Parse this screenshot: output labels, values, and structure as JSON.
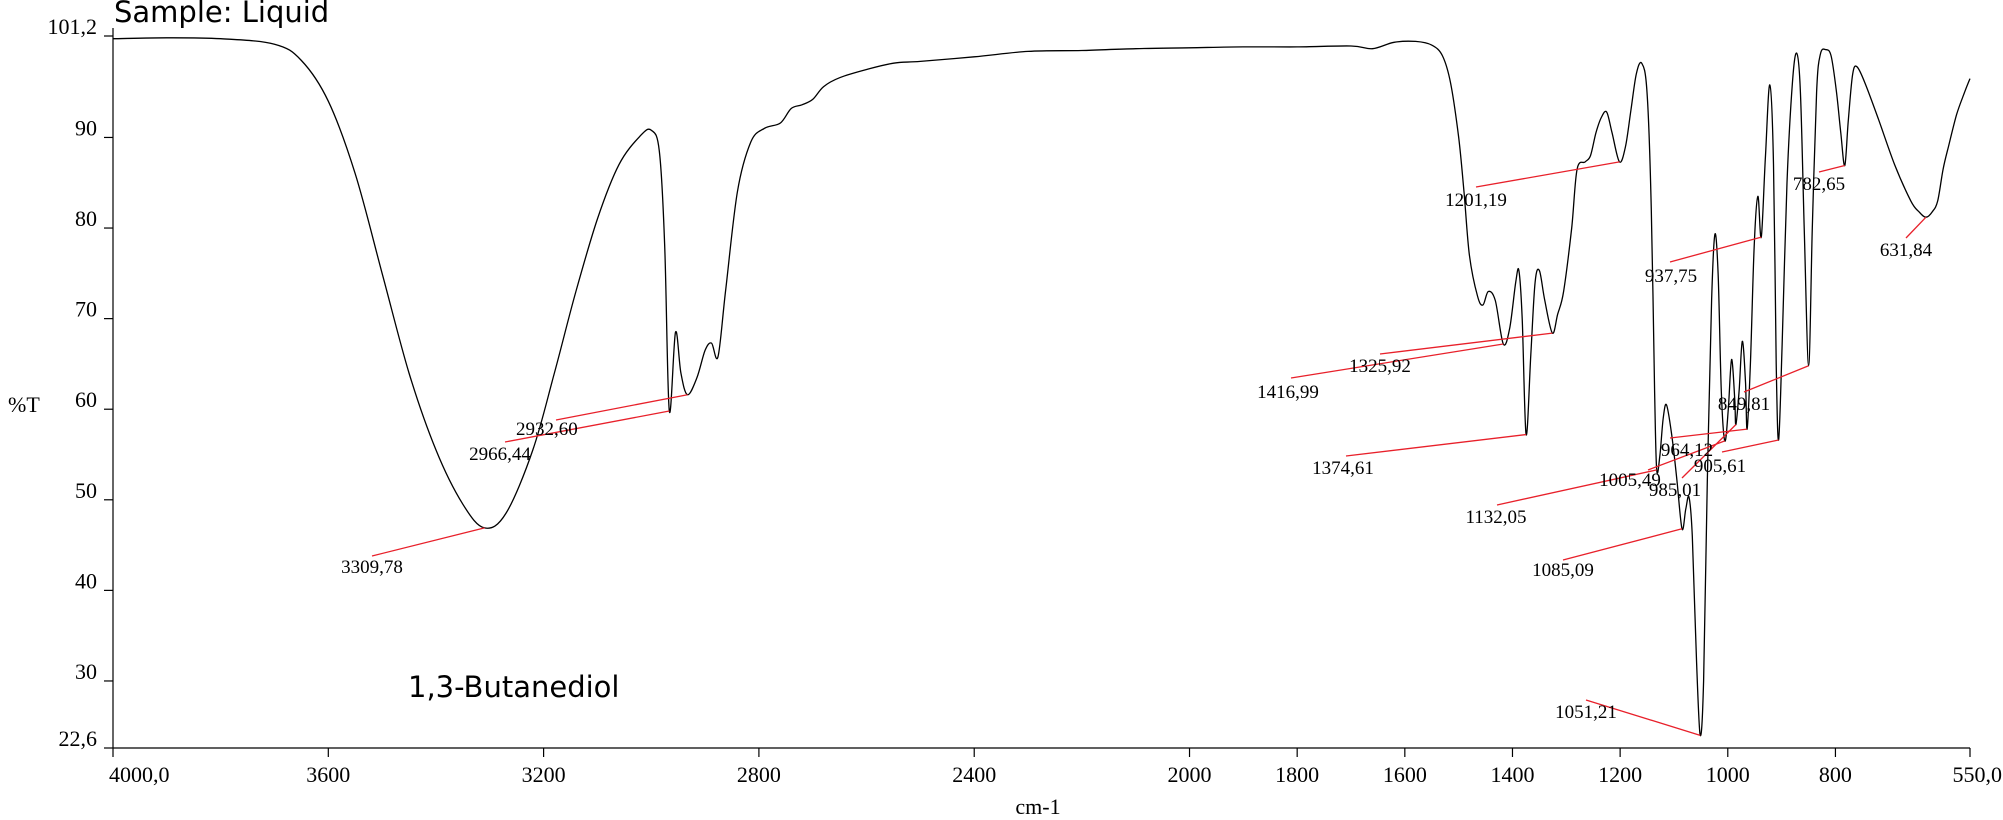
{
  "chart_data": {
    "type": "line",
    "title": "",
    "sample_label": "Sample: Liquid",
    "compound_label": "1,3-Butanediol",
    "xlabel": "cm-1",
    "ylabel": "%T",
    "xlim": [
      4000.0,
      550.0
    ],
    "ylim": [
      22.6,
      101.2
    ],
    "x_reversed": true,
    "grid": false,
    "x_ticks": [
      {
        "value": 4000,
        "label": "4000,0"
      },
      {
        "value": 3600,
        "label": "3600"
      },
      {
        "value": 3200,
        "label": "3200"
      },
      {
        "value": 2800,
        "label": "2800"
      },
      {
        "value": 2400,
        "label": "2400"
      },
      {
        "value": 2000,
        "label": "2000"
      },
      {
        "value": 1800,
        "label": "1800"
      },
      {
        "value": 1600,
        "label": "1600"
      },
      {
        "value": 1400,
        "label": "1400"
      },
      {
        "value": 1200,
        "label": "1200"
      },
      {
        "value": 1000,
        "label": "1000"
      },
      {
        "value": 800,
        "label": "800"
      },
      {
        "value": 550,
        "label": "550,0"
      }
    ],
    "y_ticks": [
      {
        "value": 101.2,
        "label": "101,2"
      },
      {
        "value": 90,
        "label": "90"
      },
      {
        "value": 80,
        "label": "80"
      },
      {
        "value": 70,
        "label": "70"
      },
      {
        "value": 60,
        "label": "60"
      },
      {
        "value": 50,
        "label": "50"
      },
      {
        "value": 40,
        "label": "40"
      },
      {
        "value": 30,
        "label": "30"
      },
      {
        "value": 22.6,
        "label": "22,6"
      }
    ],
    "spectrum": [
      [
        4000,
        100.9
      ],
      [
        3900,
        101.0
      ],
      [
        3800,
        100.9
      ],
      [
        3700,
        100.3
      ],
      [
        3650,
        98.5
      ],
      [
        3600,
        94.0
      ],
      [
        3550,
        86.0
      ],
      [
        3500,
        75.0
      ],
      [
        3450,
        64.0
      ],
      [
        3400,
        55.5
      ],
      [
        3350,
        49.5
      ],
      [
        3309.78,
        46.9
      ],
      [
        3270,
        48.5
      ],
      [
        3220,
        55.5
      ],
      [
        3180,
        64.0
      ],
      [
        3140,
        73.0
      ],
      [
        3100,
        81.0
      ],
      [
        3060,
        87.0
      ],
      [
        3020,
        90.2
      ],
      [
        3000,
        90.8
      ],
      [
        2985,
        88.5
      ],
      [
        2975,
        78.0
      ],
      [
        2966.44,
        59.8
      ],
      [
        2955,
        68.5
      ],
      [
        2945,
        64.0
      ],
      [
        2932.6,
        61.6
      ],
      [
        2915,
        63.5
      ],
      [
        2900,
        66.5
      ],
      [
        2888,
        67.3
      ],
      [
        2876,
        65.8
      ],
      [
        2862,
        73.0
      ],
      [
        2840,
        84.0
      ],
      [
        2815,
        89.5
      ],
      [
        2790,
        91.0
      ],
      [
        2760,
        91.6
      ],
      [
        2740,
        93.2
      ],
      [
        2720,
        93.6
      ],
      [
        2700,
        94.2
      ],
      [
        2680,
        95.6
      ],
      [
        2650,
        96.6
      ],
      [
        2600,
        97.5
      ],
      [
        2550,
        98.2
      ],
      [
        2500,
        98.4
      ],
      [
        2400,
        98.9
      ],
      [
        2300,
        99.5
      ],
      [
        2200,
        99.6
      ],
      [
        2100,
        99.8
      ],
      [
        2000,
        99.9
      ],
      [
        1900,
        100.0
      ],
      [
        1800,
        100.0
      ],
      [
        1700,
        100.1
      ],
      [
        1660,
        99.8
      ],
      [
        1620,
        100.5
      ],
      [
        1580,
        100.6
      ],
      [
        1550,
        100.2
      ],
      [
        1530,
        99.0
      ],
      [
        1515,
        96.0
      ],
      [
        1500,
        90.0
      ],
      [
        1490,
        84.0
      ],
      [
        1480,
        77.0
      ],
      [
        1465,
        72.5
      ],
      [
        1455,
        71.5
      ],
      [
        1445,
        73.0
      ],
      [
        1432,
        72.0
      ],
      [
        1416.99,
        67.2
      ],
      [
        1405,
        69.0
      ],
      [
        1394,
        74.0
      ],
      [
        1388,
        75.3
      ],
      [
        1382,
        70.0
      ],
      [
        1374.61,
        57.2
      ],
      [
        1366,
        66.0
      ],
      [
        1358,
        74.0
      ],
      [
        1350,
        75.3
      ],
      [
        1340,
        72.0
      ],
      [
        1325.92,
        68.4
      ],
      [
        1316,
        70.5
      ],
      [
        1305,
        73.0
      ],
      [
        1290,
        80.0
      ],
      [
        1280,
        86.5
      ],
      [
        1265,
        87.3
      ],
      [
        1255,
        88.0
      ],
      [
        1245,
        90.5
      ],
      [
        1235,
        92.2
      ],
      [
        1225,
        92.8
      ],
      [
        1215,
        90.5
      ],
      [
        1201.19,
        87.3
      ],
      [
        1190,
        89.0
      ],
      [
        1180,
        93.0
      ],
      [
        1170,
        97.0
      ],
      [
        1160,
        98.2
      ],
      [
        1150,
        95.0
      ],
      [
        1142,
        82.0
      ],
      [
        1136,
        62.0
      ],
      [
        1132.05,
        53.3
      ],
      [
        1126,
        55.0
      ],
      [
        1120,
        59.0
      ],
      [
        1114,
        60.5
      ],
      [
        1105,
        57.5
      ],
      [
        1095,
        52.5
      ],
      [
        1085.09,
        46.8
      ],
      [
        1078,
        49.0
      ],
      [
        1072,
        50.3
      ],
      [
        1066,
        46.0
      ],
      [
        1058,
        32.0
      ],
      [
        1051.21,
        24.0
      ],
      [
        1045,
        30.0
      ],
      [
        1038,
        52.0
      ],
      [
        1030,
        72.0
      ],
      [
        1024,
        79.3
      ],
      [
        1018,
        75.0
      ],
      [
        1012,
        62.0
      ],
      [
        1005.49,
        56.5
      ],
      [
        999,
        60.0
      ],
      [
        993,
        65.5
      ],
      [
        987,
        61.0
      ],
      [
        985.01,
        58.3
      ],
      [
        979,
        62.0
      ],
      [
        973,
        67.5
      ],
      [
        967,
        63.0
      ],
      [
        964.12,
        57.8
      ],
      [
        958,
        65.0
      ],
      [
        951,
        78.0
      ],
      [
        944,
        83.5
      ],
      [
        937.75,
        79.0
      ],
      [
        930,
        88.0
      ],
      [
        922,
        95.8
      ],
      [
        915,
        87.0
      ],
      [
        910,
        65.0
      ],
      [
        905.61,
        56.6
      ],
      [
        899,
        67.0
      ],
      [
        890,
        85.0
      ],
      [
        880,
        96.0
      ],
      [
        872,
        99.3
      ],
      [
        865,
        95.0
      ],
      [
        858,
        80.0
      ],
      [
        849.81,
        64.8
      ],
      [
        843,
        80.0
      ],
      [
        835,
        95.0
      ],
      [
        828,
        99.2
      ],
      [
        818,
        99.7
      ],
      [
        808,
        99.0
      ],
      [
        798,
        95.0
      ],
      [
        790,
        90.5
      ],
      [
        782.65,
        86.9
      ],
      [
        776,
        92.0
      ],
      [
        768,
        97.0
      ],
      [
        760,
        97.8
      ],
      [
        745,
        96.0
      ],
      [
        720,
        92.0
      ],
      [
        690,
        87.0
      ],
      [
        660,
        83.0
      ],
      [
        645,
        81.8
      ],
      [
        631.84,
        81.2
      ],
      [
        620,
        81.8
      ],
      [
        610,
        83.0
      ],
      [
        600,
        86.5
      ],
      [
        590,
        89.0
      ],
      [
        575,
        92.5
      ],
      [
        560,
        95.0
      ],
      [
        550,
        96.5
      ]
    ],
    "annotations": [
      {
        "label": "3309,78",
        "x": 3309.78,
        "y": 46.9
      },
      {
        "label": "2966,44",
        "x": 2966.44,
        "y": 59.8
      },
      {
        "label": "2932,60",
        "x": 2932.6,
        "y": 61.6
      },
      {
        "label": "1416,99",
        "x": 1416.99,
        "y": 67.2
      },
      {
        "label": "1374,61",
        "x": 1374.61,
        "y": 57.2
      },
      {
        "label": "1325,92",
        "x": 1325.92,
        "y": 68.4
      },
      {
        "label": "1201,19",
        "x": 1201.19,
        "y": 87.3
      },
      {
        "label": "1132,05",
        "x": 1132.05,
        "y": 53.3
      },
      {
        "label": "1085,09",
        "x": 1085.09,
        "y": 46.8
      },
      {
        "label": "1051,21",
        "x": 1051.21,
        "y": 24.0
      },
      {
        "label": "1005,49",
        "x": 1005.49,
        "y": 56.5
      },
      {
        "label": "985,01",
        "x": 985.01,
        "y": 58.3
      },
      {
        "label": "964,12",
        "x": 964.12,
        "y": 57.8
      },
      {
        "label": "937,75",
        "x": 937.75,
        "y": 79.0
      },
      {
        "label": "905,61",
        "x": 905.61,
        "y": 56.6
      },
      {
        "label": "849,81",
        "x": 849.81,
        "y": 64.8
      },
      {
        "label": "782,65",
        "x": 782.65,
        "y": 86.9
      },
      {
        "label": "631,84",
        "x": 631.84,
        "y": 81.2
      }
    ],
    "colors": {
      "line": "#000000",
      "marker": "#e8202a",
      "axis": "#000000"
    }
  }
}
